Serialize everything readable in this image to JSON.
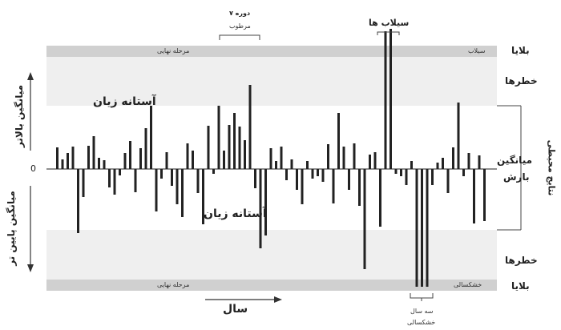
{
  "chart_data": {
    "type": "bar",
    "baseline_label": "0",
    "values": [
      2.7,
      1.2,
      2.0,
      2.8,
      -8.0,
      -3.5,
      2.9,
      4.1,
      1.4,
      1.1,
      -2.3,
      -3.2,
      -0.8,
      2.0,
      3.5,
      -2.9,
      2.6,
      5.1,
      7.9,
      -5.3,
      -1.2,
      2.1,
      -2.1,
      -4.4,
      -6.0,
      3.2,
      2.3,
      -3.0,
      -6.9,
      5.4,
      -0.6,
      7.9,
      2.3,
      5.5,
      7.0,
      5.3,
      3.6,
      10.5,
      -2.4,
      -9.9,
      -8.3,
      2.6,
      1.0,
      2.8,
      -1.4,
      1.2,
      -2.6,
      -4.4,
      1.0,
      -1.2,
      -0.9,
      -1.6,
      3.1,
      -4.3,
      7.0,
      2.8,
      -2.6,
      3.2,
      -4.6,
      -12.5,
      1.8,
      2.1,
      -7.2,
      17.2,
      17.5,
      -0.6,
      -0.9,
      -2.0,
      1.0,
      -14.7,
      -14.7,
      -14.7,
      -2.0,
      0.8,
      1.4,
      -3.0,
      2.7,
      8.3,
      -0.9,
      2.0,
      -6.8,
      1.7,
      -6.5
    ],
    "ylim": [
      -15,
      20
    ]
  },
  "labels": {
    "flood_peaks": "سیلاب ها",
    "seven_periods_line1": "۷ دوره",
    "seven_periods_line2": "مرطوب",
    "top_band_left": "مرحله نهایی",
    "top_band_right": "سیلاب",
    "bottom_band_left": "مرحله نهایی",
    "bottom_band_right": "خشکسالی",
    "upper_threshold": "آستانه زیان",
    "lower_threshold": "آستانه زیان",
    "left_axis_upper": "میانگین بالاتر",
    "left_axis_lower": "میانگین پایین تر",
    "left_axis_zero": "0",
    "right_top_disaster": "بلایا",
    "right_top_risk": "خطرها",
    "right_mean_line1": "میانگین",
    "right_mean_line2": "بارش",
    "right_vertical": "نتایج محیطی",
    "right_bottom_risk": "خطرها",
    "right_bottom_disaster": "بلایا",
    "x_axis": "سال",
    "three_year_line1": "سه سال",
    "three_year_line2": "خشکسالی"
  },
  "colors": {
    "bar": "#222222",
    "band": "#d0d0d0",
    "light_band": "#efefef"
  }
}
